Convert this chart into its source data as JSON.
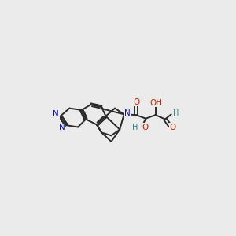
{
  "bg_color": "#ebebeb",
  "bond_color": "#2a2a2a",
  "N_color": "#1414cc",
  "O_color": "#cc2200",
  "OH_color": "#2a8080",
  "figsize": [
    3.0,
    3.0
  ],
  "dpi": 100,
  "xlim": [
    0,
    300
  ],
  "ylim": [
    0,
    300
  ]
}
